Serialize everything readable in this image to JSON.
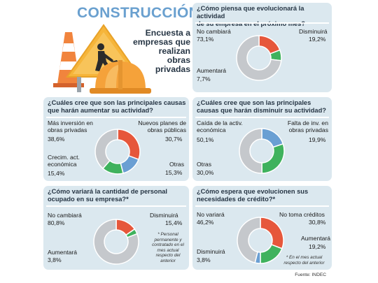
{
  "header": {
    "brand": "CONSTRUCCIÓN",
    "subtitle_lines": [
      "Encuesta a",
      "empresas que",
      "realizan",
      "obras",
      "privadas"
    ]
  },
  "source": "Fuente: INDEC",
  "colors": {
    "red": "#e6573b",
    "green": "#3fb25d",
    "blue": "#6a9fd3",
    "gray": "#c5c8cc",
    "panel": "#dbe8ef",
    "title_blue": "#6aa0cf"
  },
  "chart_data": [
    {
      "id": "actividad",
      "type": "pie",
      "title_lines": [
        "¿Cómo piensa que evolucionará la actividad",
        "de su empresa en el próximo mes?"
      ],
      "categories": [
        "No cambiará",
        "Disminuirá",
        "Aumentará"
      ],
      "values": [
        73.1,
        19.2,
        7.7
      ],
      "value_labels": [
        "73,1%",
        "19,2%",
        "7,7%"
      ],
      "colors": [
        "#c5c8cc",
        "#e6573b",
        "#3fb25d"
      ]
    },
    {
      "id": "aumentar",
      "type": "pie",
      "title_lines": [
        "¿Cuáles cree que son las principales causas",
        "que harán aumentar su actividad?"
      ],
      "categories": [
        "Más inversión en obras privadas",
        "Nuevos planes de obras públicas",
        "Otras",
        "Crecim. act. económica"
      ],
      "label_lines": [
        [
          "Más inversión en",
          "obras privadas"
        ],
        [
          "Nuevos planes de",
          "obras públicas"
        ],
        [
          "Otras"
        ],
        [
          "Crecim. act.",
          "económica"
        ]
      ],
      "values": [
        38.6,
        30.7,
        15.3,
        15.4
      ],
      "value_labels": [
        "38,6%",
        "30,7%",
        "15,3%",
        "15,4%"
      ],
      "colors": [
        "#c5c8cc",
        "#e6573b",
        "#6a9fd3",
        "#3fb25d"
      ]
    },
    {
      "id": "disminuir",
      "type": "pie",
      "title_lines": [
        "¿Cuáles cree que son las principales",
        "causas que harán disminuir su actividad?"
      ],
      "categories": [
        "Caída de la activ. económica",
        "Falta de inv. en obras privadas",
        "Otras"
      ],
      "label_lines": [
        [
          "Caída de la activ.",
          "económica"
        ],
        [
          "Falta de inv. en",
          "obras privadas"
        ],
        [
          "Otras"
        ]
      ],
      "values": [
        50.1,
        19.9,
        30.0
      ],
      "value_labels": [
        "50,1%",
        "19,9%",
        "30,0%"
      ],
      "colors": [
        "#c5c8cc",
        "#6a9fd3",
        "#3fb25d"
      ]
    },
    {
      "id": "personal",
      "type": "pie",
      "title_lines": [
        "¿Cómo variará la cantidad de personal",
        "ocupado en su empresa?*"
      ],
      "categories": [
        "No cambiará",
        "Disminuirá",
        "Aumentará"
      ],
      "values": [
        80.8,
        15.4,
        3.8
      ],
      "value_labels": [
        "80,8%",
        "15,4%",
        "3,8%"
      ],
      "colors": [
        "#c5c8cc",
        "#e6573b",
        "#3fb25d"
      ],
      "note_lines": [
        "* Personal",
        "permanente y",
        "contratado en el",
        "mes actual",
        "respecto del",
        "anterior"
      ]
    },
    {
      "id": "credito",
      "type": "pie",
      "title_lines": [
        "¿Cómo espera que evolucionen sus",
        "necesidades de crédito?*"
      ],
      "categories": [
        "No variará",
        "No toma créditos",
        "Aumentará",
        "Disminuirá"
      ],
      "values": [
        46.2,
        30.8,
        19.2,
        3.8
      ],
      "value_labels": [
        "46,2%",
        "30,8%",
        "19,2%",
        "3,8%"
      ],
      "colors": [
        "#c5c8cc",
        "#e6573b",
        "#3fb25d",
        "#6a9fd3"
      ],
      "note_lines": [
        "* En el mes actual",
        "respecto del anterior"
      ]
    }
  ]
}
